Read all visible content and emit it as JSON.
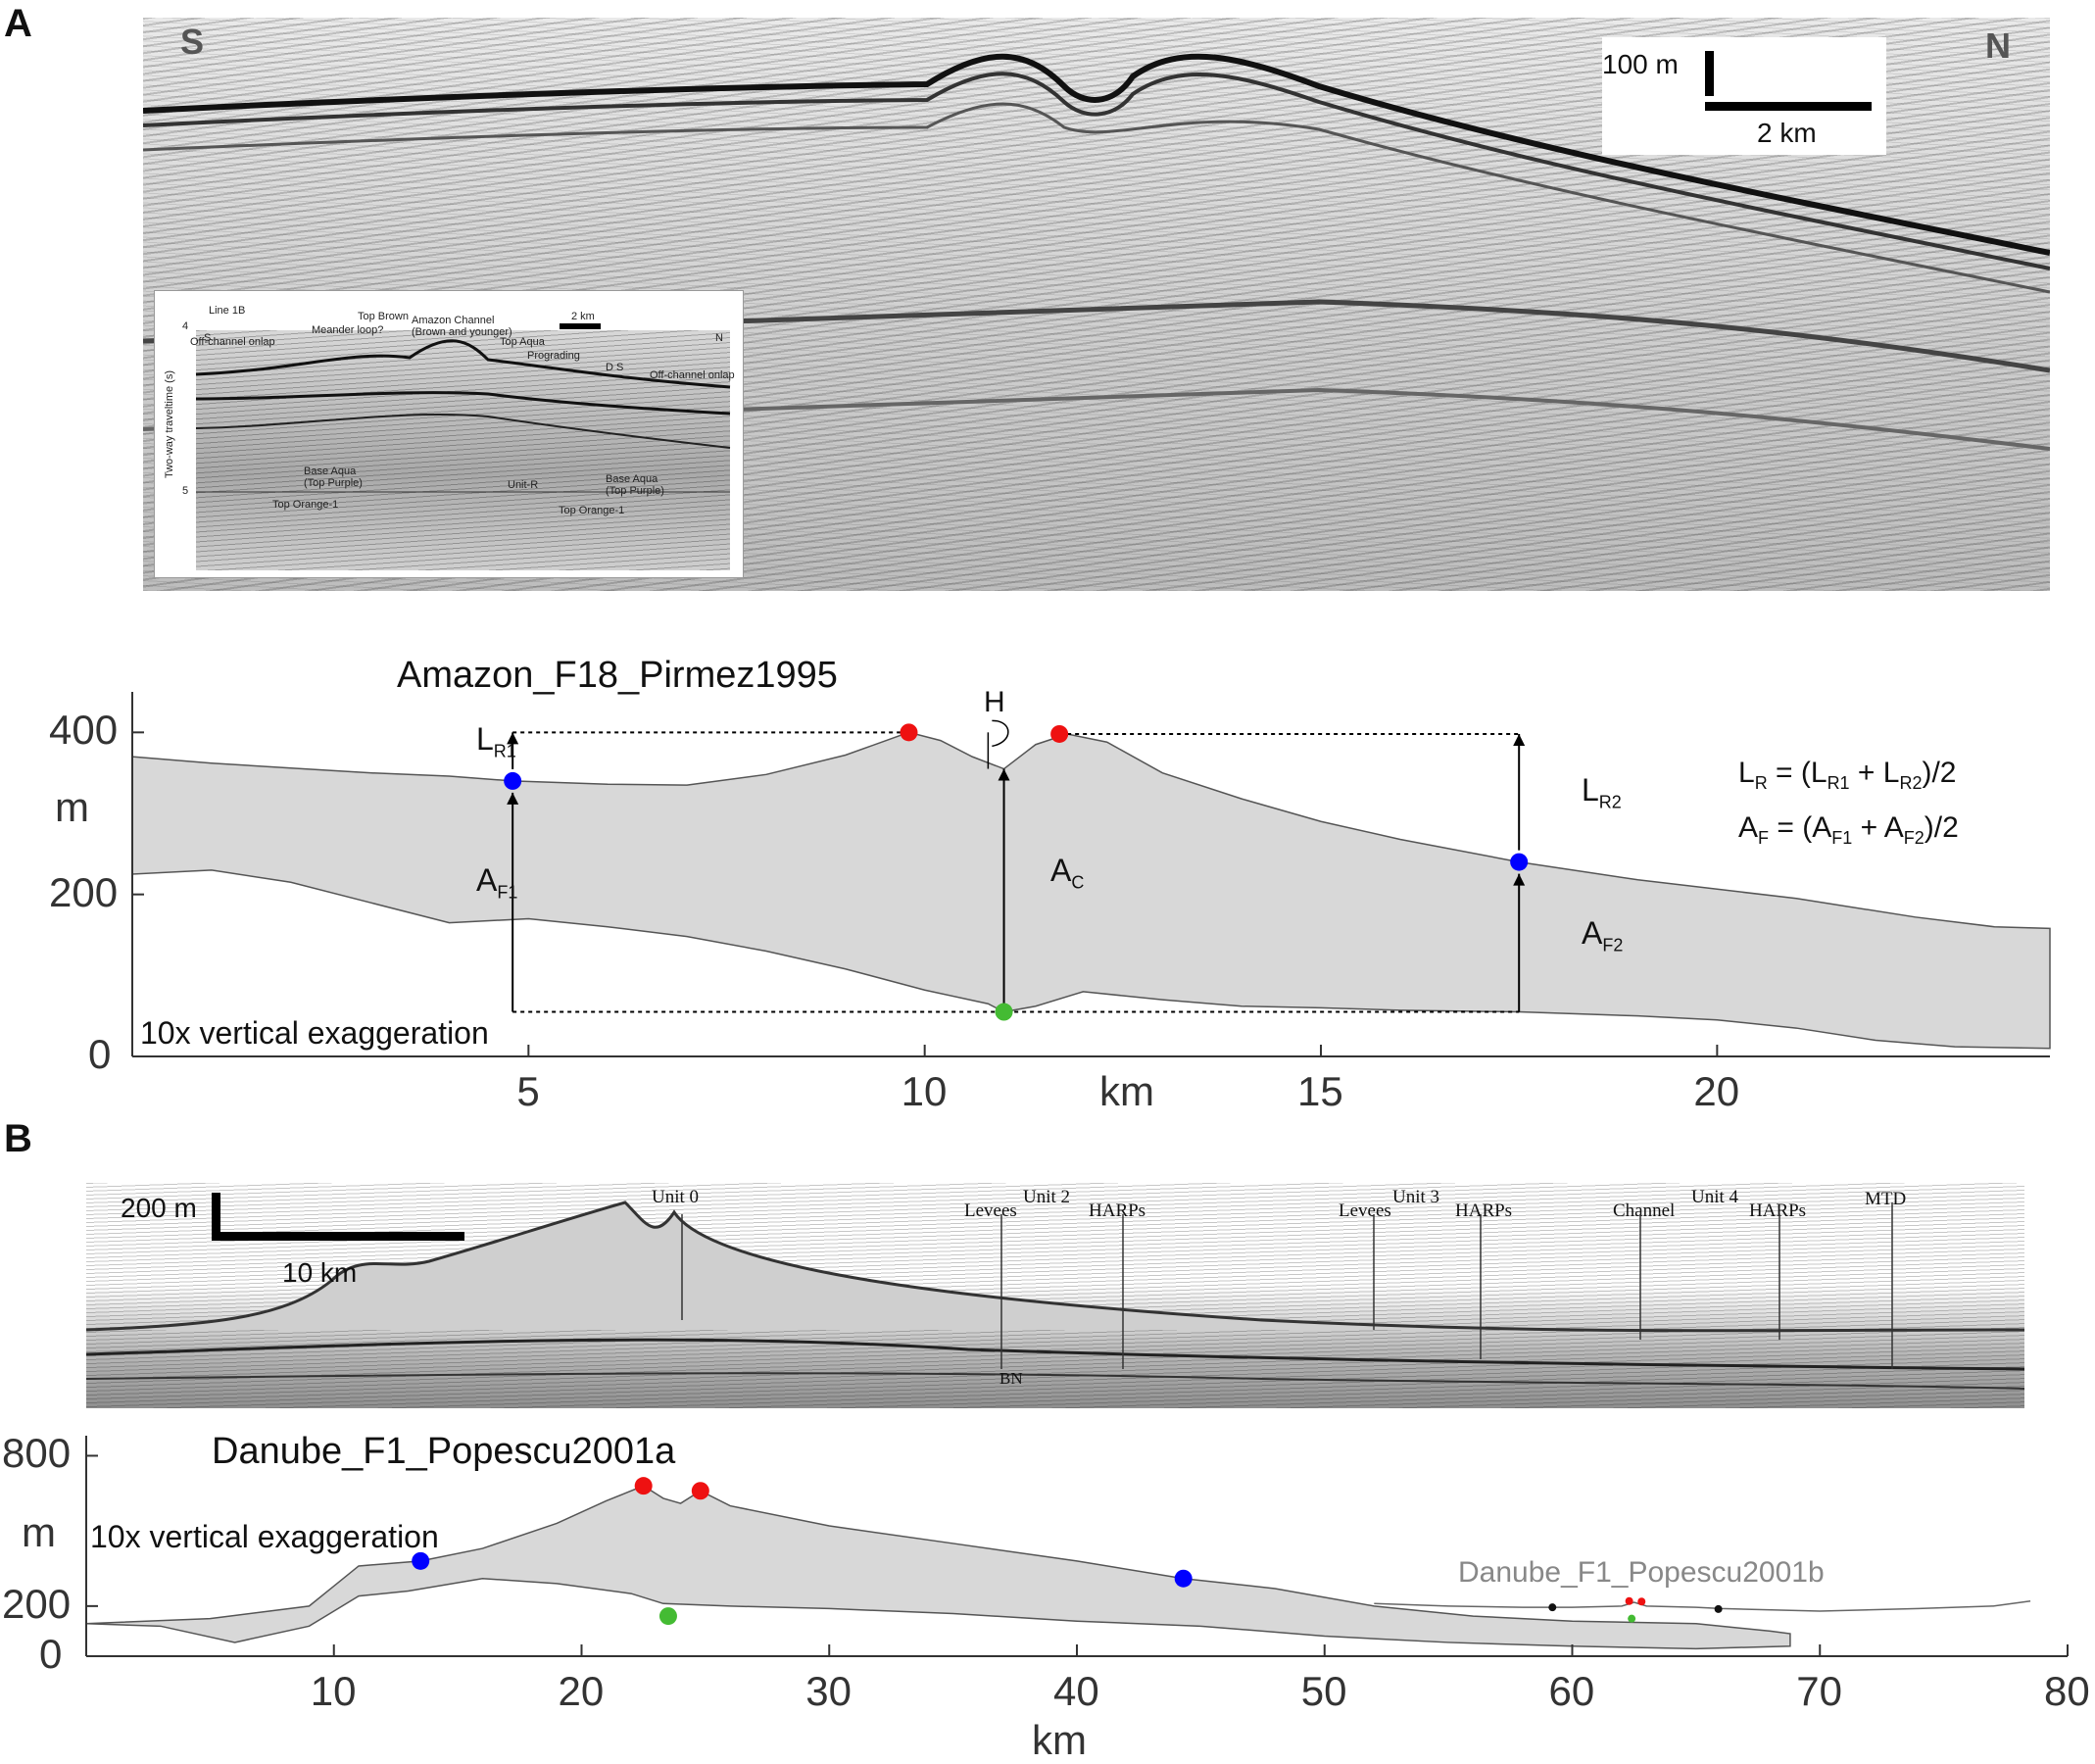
{
  "panels": {
    "a": "A",
    "b": "B"
  },
  "seismic_a": {
    "left_dir": "S",
    "right_dir": "N",
    "vscale": "100 m",
    "hscale": "2 km"
  },
  "inset": {
    "line": "Line 1B",
    "scale": "2 km",
    "s": "S",
    "n": "N",
    "yaxis": "Two-way traveltime (s)",
    "ticks": [
      "4",
      "5"
    ],
    "labels": [
      "Top Brown",
      "Amazon Channel",
      "(Brown and younger)",
      "Meander loop?",
      "Off-channel onlap",
      "Top Aqua",
      "Prograding",
      "D S",
      "Off-channel onlap",
      "Base Aqua",
      "(Top Purple)",
      "Unit-R",
      "Base Aqua",
      "(Top Purple)",
      "Top Orange-1",
      "Top Orange-1"
    ]
  },
  "seismic_b": {
    "vscale": "200 m",
    "hscale": "10 km",
    "labels": [
      "Unit 0",
      "Unit 2",
      "Levees",
      "HARPs",
      "Unit 3",
      "Levees",
      "HARPs",
      "Unit 4",
      "Channel",
      "HARPs",
      "MTD",
      "BN"
    ]
  },
  "chart_data": [
    {
      "type": "area",
      "title": "Amazon_F18_Pirmez1995",
      "xlabel": "km",
      "ylabel": "m",
      "xlim": [
        0,
        24.2
      ],
      "ylim": [
        0,
        450
      ],
      "xticks": [
        5,
        10,
        15,
        20
      ],
      "yticks": [
        0,
        200,
        400
      ],
      "note": "10x vertical exaggeration",
      "top": [
        [
          0,
          370
        ],
        [
          1,
          362
        ],
        [
          2,
          356
        ],
        [
          3,
          350
        ],
        [
          4,
          346
        ],
        [
          4.8,
          340
        ],
        [
          6,
          336
        ],
        [
          7,
          335
        ],
        [
          8,
          348
        ],
        [
          9,
          372
        ],
        [
          9.8,
          400
        ],
        [
          10.2,
          390
        ],
        [
          10.6,
          370
        ],
        [
          11,
          355
        ],
        [
          11.4,
          385
        ],
        [
          11.8,
          398
        ],
        [
          12.3,
          388
        ],
        [
          13,
          350
        ],
        [
          14,
          318
        ],
        [
          15,
          290
        ],
        [
          16,
          268
        ],
        [
          17.5,
          240
        ],
        [
          19,
          218
        ],
        [
          21,
          195
        ],
        [
          22.5,
          172
        ],
        [
          23.5,
          160
        ],
        [
          24.2,
          158
        ]
      ],
      "bottom": [
        [
          0,
          225
        ],
        [
          1,
          230
        ],
        [
          2,
          215
        ],
        [
          3,
          190
        ],
        [
          4,
          165
        ],
        [
          5,
          170
        ],
        [
          6,
          160
        ],
        [
          7,
          148
        ],
        [
          8,
          130
        ],
        [
          9,
          108
        ],
        [
          10,
          82
        ],
        [
          10.8,
          65
        ],
        [
          11,
          55
        ],
        [
          11.4,
          62
        ],
        [
          12,
          80
        ],
        [
          12.5,
          75
        ],
        [
          13,
          70
        ],
        [
          14,
          62
        ],
        [
          15,
          60
        ],
        [
          16,
          57
        ],
        [
          17.5,
          55
        ],
        [
          19,
          50
        ],
        [
          20,
          45
        ],
        [
          21,
          35
        ],
        [
          22,
          20
        ],
        [
          23,
          12
        ],
        [
          24.2,
          10
        ]
      ],
      "points": [
        {
          "kind": "levee",
          "x": 4.8,
          "y": 340
        },
        {
          "kind": "crest",
          "x": 9.8,
          "y": 400
        },
        {
          "kind": "crest",
          "x": 11.7,
          "y": 398
        },
        {
          "kind": "levee",
          "x": 17.5,
          "y": 240
        },
        {
          "kind": "thalweg",
          "x": 11.0,
          "y": 55
        }
      ],
      "annotations": {
        "lr1": "R1",
        "af1": "F1",
        "ac": "C",
        "lr2": "R2",
        "af2": "F2",
        "h": "H"
      },
      "equations": {
        "lr": {
          "lhs_sub": "R",
          "r1": "R1",
          "r2": "R2"
        },
        "af": {
          "lhs_sub": "F",
          "f1": "F1",
          "f2": "F2"
        }
      }
    },
    {
      "type": "area",
      "title": "Danube_F1_Popescu2001a",
      "second_profile": "Danube_F1_Popescu2001b",
      "xlabel": "km",
      "ylabel": "m",
      "xlim": [
        0,
        80
      ],
      "ylim": [
        0,
        880
      ],
      "xticks": [
        10,
        20,
        30,
        40,
        50,
        60,
        70,
        80
      ],
      "yticks": [
        0,
        200,
        800
      ],
      "note": "10x vertical exaggeration",
      "top": [
        [
          0,
          130
        ],
        [
          5,
          150
        ],
        [
          9,
          200
        ],
        [
          10,
          280
        ],
        [
          11,
          360
        ],
        [
          13.5,
          380
        ],
        [
          16,
          430
        ],
        [
          19,
          530
        ],
        [
          21,
          620
        ],
        [
          22.5,
          680
        ],
        [
          23.3,
          630
        ],
        [
          24,
          610
        ],
        [
          24.8,
          660
        ],
        [
          26,
          600
        ],
        [
          30,
          520
        ],
        [
          35,
          450
        ],
        [
          40,
          380
        ],
        [
          44.3,
          310
        ],
        [
          48,
          270
        ],
        [
          52,
          200
        ],
        [
          56,
          160
        ],
        [
          60,
          140
        ],
        [
          65,
          130
        ],
        [
          68,
          100
        ],
        [
          68.8,
          90
        ]
      ],
      "bottom": [
        [
          0,
          130
        ],
        [
          3,
          120
        ],
        [
          6,
          55
        ],
        [
          9,
          120
        ],
        [
          10,
          180
        ],
        [
          11,
          240
        ],
        [
          13,
          260
        ],
        [
          16,
          310
        ],
        [
          19,
          290
        ],
        [
          22,
          250
        ],
        [
          23.3,
          210
        ],
        [
          26,
          200
        ],
        [
          30,
          190
        ],
        [
          35,
          170
        ],
        [
          40,
          140
        ],
        [
          45,
          120
        ],
        [
          50,
          80
        ],
        [
          55,
          55
        ],
        [
          60,
          40
        ],
        [
          65,
          30
        ],
        [
          68.8,
          40
        ]
      ],
      "profile_b": [
        [
          52,
          210
        ],
        [
          55,
          200
        ],
        [
          58,
          195
        ],
        [
          60,
          195
        ],
        [
          62,
          200
        ],
        [
          62.5,
          215
        ],
        [
          63,
          200
        ],
        [
          65,
          195
        ],
        [
          66,
          190
        ],
        [
          70,
          180
        ],
        [
          74,
          190
        ],
        [
          77,
          200
        ],
        [
          78.5,
          220
        ]
      ],
      "points": [
        {
          "kind": "levee",
          "x": 13.5,
          "y": 380
        },
        {
          "kind": "crest",
          "x": 22.5,
          "y": 680
        },
        {
          "kind": "crest",
          "x": 24.8,
          "y": 660
        },
        {
          "kind": "levee",
          "x": 44.3,
          "y": 310
        },
        {
          "kind": "thalweg",
          "x": 23.5,
          "y": 160
        },
        {
          "kind": "b-levee",
          "x": 59.2,
          "y": 195
        },
        {
          "kind": "b-crest",
          "x": 62.3,
          "y": 220
        },
        {
          "kind": "b-crest",
          "x": 62.8,
          "y": 218
        },
        {
          "kind": "b-levee",
          "x": 65.9,
          "y": 188
        },
        {
          "kind": "b-thalweg",
          "x": 62.4,
          "y": 150
        }
      ]
    }
  ],
  "colors": {
    "fill": "#d8d8d8",
    "outline": "#555555",
    "levee": "#0000ff",
    "crest": "#ee1111",
    "thalweg": "#44bb33",
    "b_levee": "#111111"
  }
}
